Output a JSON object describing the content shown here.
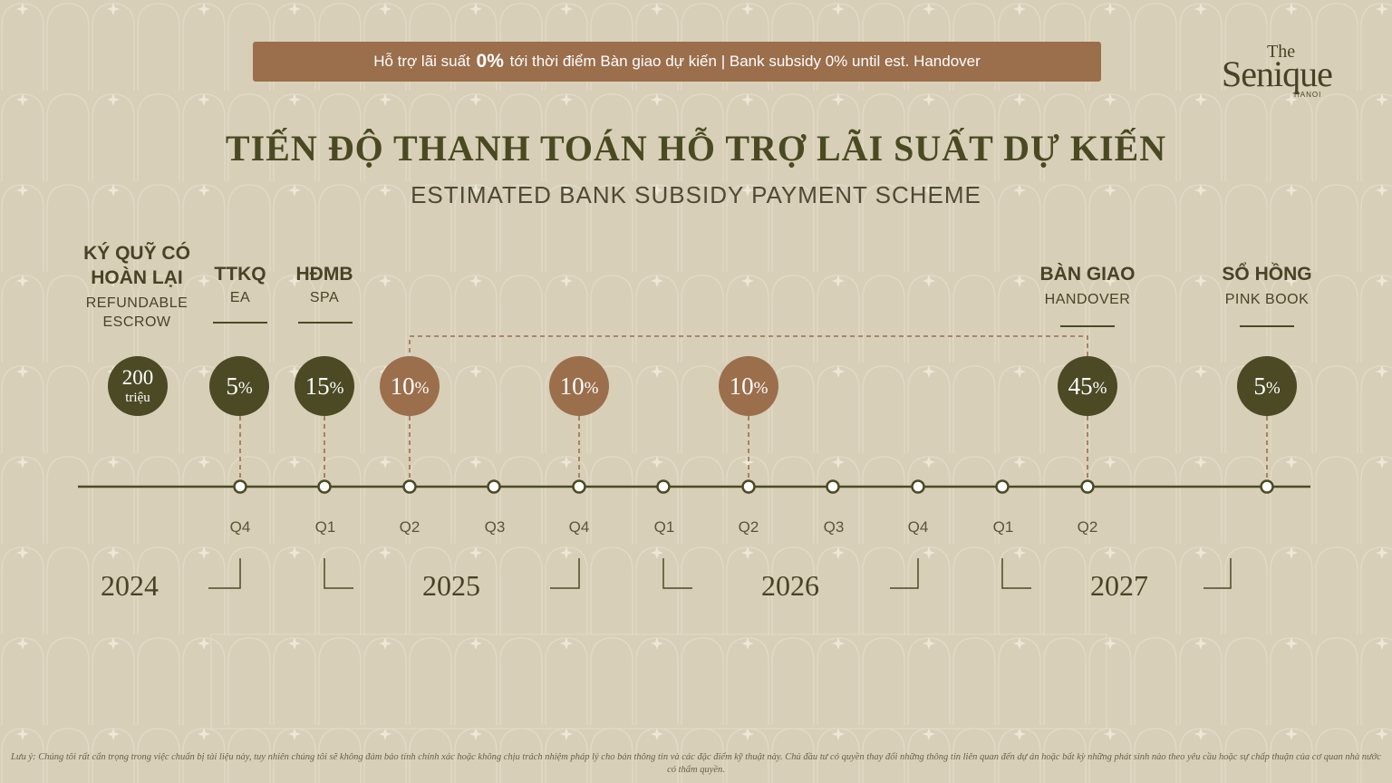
{
  "banner": {
    "vi_pre": "Hỗ trợ lãi suất",
    "vi_pct": "0%",
    "vi_post": "tới thời điểm Bàn giao dự kiến |",
    "en_pre": "Bank subsidy",
    "en_pct": "0%",
    "en_post": "until est. Handover"
  },
  "logo": {
    "the": "The",
    "name": "Senique",
    "city": "HANOI"
  },
  "title": "TIẾN ĐỘ THANH TOÁN HỖ TRỢ LÃI SUẤT DỰ KIẾN",
  "subtitle": "ESTIMATED BANK SUBSIDY PAYMENT SCHEME",
  "milestones": [
    {
      "vi": "KÝ QUỸ CÓ HOÀN LẠI",
      "en": "REFUNDABLE ESCROW"
    },
    {
      "vi": "TTKQ",
      "en": "EA"
    },
    {
      "vi": "HĐMB",
      "en": "SPA"
    },
    {
      "vi": "BÀN GIAO",
      "en": "HANDOVER"
    },
    {
      "vi": "SỔ HỒNG",
      "en": "PINK BOOK"
    }
  ],
  "payments": [
    {
      "amount": "200",
      "unit": "triệu",
      "color": "#4b4a25"
    },
    {
      "value": "5",
      "unit": "%",
      "color": "#4b4a25"
    },
    {
      "value": "15",
      "unit": "%",
      "color": "#4b4a25"
    },
    {
      "value": "10",
      "unit": "%",
      "color": "#9b6e4c"
    },
    {
      "value": "10",
      "unit": "%",
      "color": "#9b6e4c"
    },
    {
      "value": "10",
      "unit": "%",
      "color": "#9b6e4c"
    },
    {
      "value": "45",
      "unit": "%",
      "color": "#4b4a25"
    },
    {
      "value": "5",
      "unit": "%",
      "color": "#4b4a25"
    }
  ],
  "quarters": [
    "Q4",
    "Q1",
    "Q2",
    "Q3",
    "Q4",
    "Q1",
    "Q2",
    "Q3",
    "Q4",
    "Q1",
    "Q2"
  ],
  "years": [
    "2024",
    "2025",
    "2026",
    "2027"
  ],
  "footer": "Lưu ý: Chúng tôi rất cẩn trọng trong việc chuẩn bị tài liệu này, tuy nhiên chúng tôi sẽ không đảm bảo tính chính xác hoặc không chịu trách nhiệm pháp lý cho bản thông tin và các đặc điểm kỹ thuật này. Chủ đầu tư có quyền thay đổi những thông tin liên quan đến dự án hoặc bất kỳ những phát sinh nào theo yêu cầu hoặc sự chấp thuận của cơ quan nhà nước có thẩm quyền.",
  "colors": {
    "background": "#d8cfb8",
    "dark_olive": "#4b4a25",
    "brown": "#9b6e4c"
  }
}
